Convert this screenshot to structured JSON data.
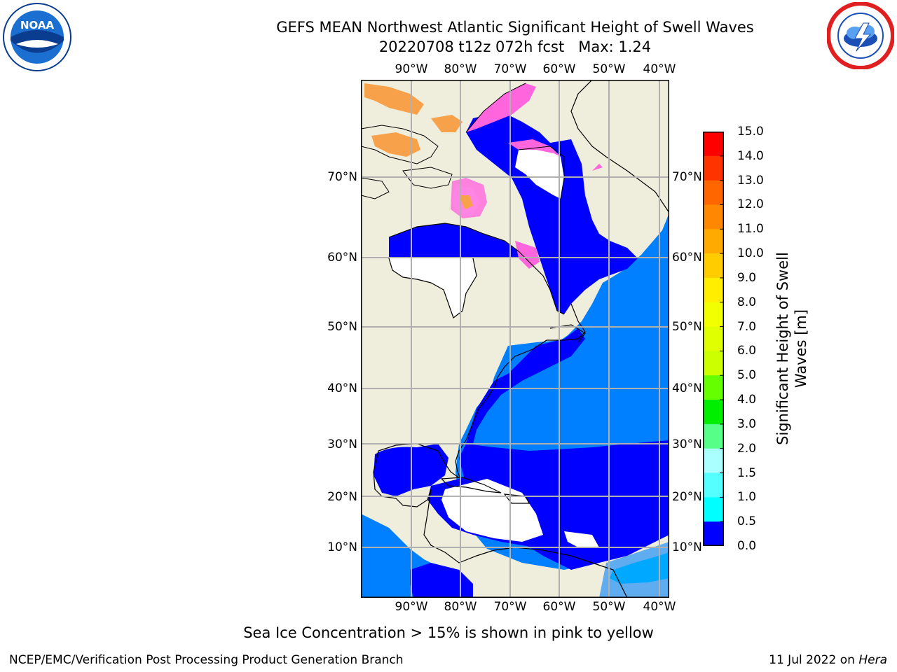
{
  "header": {
    "title": "GEFS MEAN Northwest Atlantic Significant Height of Swell Waves",
    "subtitle": "20220708 t12z 072h fcst   Max: 1.24"
  },
  "logos": {
    "noaa": {
      "text": "NOAA",
      "icon": "noaa-logo-icon"
    },
    "nws": {
      "icon": "nws-logo-icon"
    }
  },
  "map": {
    "lon_labels": [
      "90°W",
      "80°W",
      "70°W",
      "60°W",
      "50°W",
      "40°W"
    ],
    "lat_labels": [
      "70°N",
      "60°N",
      "50°N",
      "40°N",
      "30°N",
      "20°N",
      "10°N"
    ],
    "colors": {
      "land": "#efeddc",
      "ocean_low": "#0000ff",
      "ocean_mid": "#0080ff",
      "ocean_high": "#00e5ff",
      "grid": "#b0b0b0",
      "ice_pink": "#ff66dd",
      "ice_orange": "#f7a24b"
    }
  },
  "colorbar": {
    "title_line1": "Significant Height of Swell",
    "title_line2": "Waves [m]",
    "ticks": [
      "15.0",
      "14.0",
      "13.0",
      "12.0",
      "11.0",
      "10.0",
      "9.0",
      "8.0",
      "7.0",
      "6.0",
      "5.0",
      "4.0",
      "3.0",
      "2.0",
      "1.5",
      "1.0",
      "0.5",
      "0.0"
    ],
    "colors": [
      "#ff0000",
      "#ff3300",
      "#ff6600",
      "#ff8800",
      "#ffaa00",
      "#ffcc00",
      "#ffee00",
      "#f2ff00",
      "#e0ff00",
      "#ccff00",
      "#66ff00",
      "#00ee00",
      "#55ff88",
      "#aaffff",
      "#55ffff",
      "#00ffff",
      "#0080ff",
      "#0000ff"
    ]
  },
  "note": "Sea Ice Concentration > 15% is shown in pink to yellow",
  "footer": {
    "left": "NCEP/EMC/Verification Post Processing Product Generation Branch",
    "right_prefix": "11 Jul 2022 on ",
    "right_host": "Hera"
  }
}
